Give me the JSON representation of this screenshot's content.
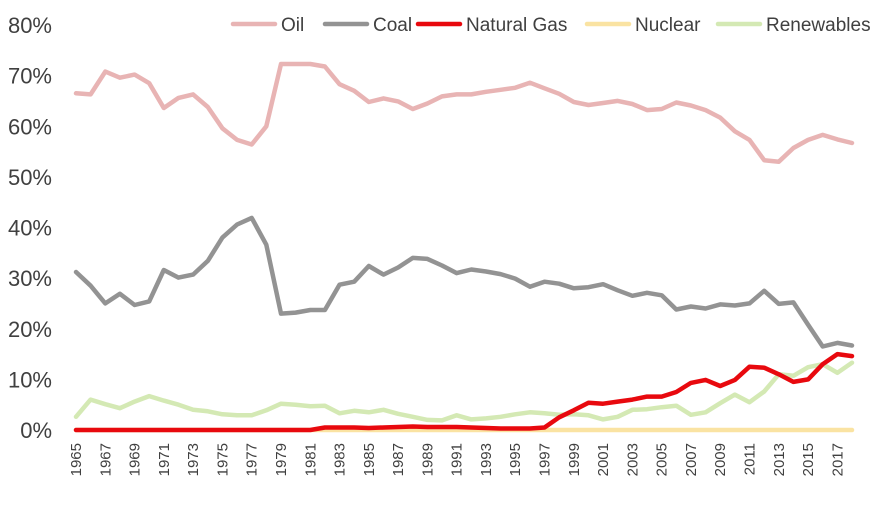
{
  "chart_data": {
    "type": "line",
    "title": "",
    "xlabel": "",
    "ylabel": "",
    "ylim": [
      0,
      80
    ],
    "y_ticks": [
      "0%",
      "10%",
      "20%",
      "30%",
      "40%",
      "50%",
      "60%",
      "70%",
      "80%"
    ],
    "x_tick_labels": [
      "1965",
      "1967",
      "1969",
      "1971",
      "1973",
      "1975",
      "1977",
      "1979",
      "1981",
      "1983",
      "1985",
      "1987",
      "1989",
      "1991",
      "1993",
      "1995",
      "1997",
      "1999",
      "2001",
      "2003",
      "2005",
      "2007",
      "2009",
      "2011",
      "2013",
      "2015",
      "2017"
    ],
    "x": [
      1965,
      1966,
      1967,
      1968,
      1969,
      1970,
      1971,
      1972,
      1973,
      1974,
      1975,
      1976,
      1977,
      1978,
      1979,
      1980,
      1981,
      1982,
      1983,
      1984,
      1985,
      1986,
      1987,
      1988,
      1989,
      1990,
      1991,
      1992,
      1993,
      1994,
      1995,
      1996,
      1997,
      1998,
      1999,
      2000,
      2001,
      2002,
      2003,
      2004,
      2005,
      2006,
      2007,
      2008,
      2009,
      2010,
      2011,
      2012,
      2013,
      2014,
      2015,
      2016,
      2017,
      2018
    ],
    "grid": false,
    "legend_position": "top",
    "series": [
      {
        "name": "Oil",
        "color": "#e8b4b4",
        "values": [
          66.5,
          66.3,
          70.8,
          69.6,
          70.2,
          68.5,
          63.6,
          65.6,
          66.3,
          63.8,
          59.6,
          57.3,
          56.4,
          60.0,
          72.3,
          72.3,
          72.3,
          71.8,
          68.3,
          67.0,
          64.8,
          65.5,
          64.9,
          63.4,
          64.5,
          65.9,
          66.3,
          66.3,
          66.8,
          67.2,
          67.6,
          68.6,
          67.5,
          66.4,
          64.8,
          64.2,
          64.6,
          65.0,
          64.4,
          63.2,
          63.4,
          64.7,
          64.1,
          63.2,
          61.7,
          59.0,
          57.3,
          53.3,
          53.0,
          55.7,
          57.3,
          58.3,
          57.4,
          56.7
        ]
      },
      {
        "name": "Coal",
        "color": "#939393",
        "values": [
          31.2,
          28.5,
          25.0,
          26.9,
          24.7,
          25.4,
          31.6,
          30.1,
          30.7,
          33.4,
          38.0,
          40.6,
          41.9,
          36.6,
          23.0,
          23.2,
          23.7,
          23.7,
          28.7,
          29.3,
          32.4,
          30.7,
          32.1,
          34.0,
          33.8,
          32.5,
          31.0,
          31.7,
          31.3,
          30.8,
          29.9,
          28.3,
          29.3,
          28.9,
          28.0,
          28.2,
          28.8,
          27.6,
          26.5,
          27.1,
          26.6,
          23.8,
          24.4,
          24.0,
          24.8,
          24.6,
          25.0,
          27.5,
          24.9,
          25.2,
          20.8,
          16.5,
          17.2,
          16.7
        ]
      },
      {
        "name": "Natural Gas",
        "color": "#e8090e",
        "values": [
          0,
          0,
          0,
          0,
          0,
          0,
          0,
          0,
          0,
          0,
          0,
          0,
          0,
          0,
          0,
          0,
          0,
          0.5,
          0.5,
          0.5,
          0.4,
          0.5,
          0.6,
          0.7,
          0.6,
          0.6,
          0.6,
          0.5,
          0.4,
          0.3,
          0.3,
          0.3,
          0.5,
          2.5,
          3.9,
          5.4,
          5.2,
          5.6,
          6.0,
          6.6,
          6.6,
          7.5,
          9.3,
          9.9,
          8.7,
          9.9,
          12.5,
          12.3,
          11.0,
          9.5,
          10.0,
          13.0,
          15.0,
          14.6
        ]
      },
      {
        "name": "Nuclear",
        "color": "#fae3a2",
        "values": [
          0,
          0,
          0,
          0,
          0,
          0,
          0,
          0,
          0,
          0,
          0,
          0,
          0,
          0,
          0,
          0,
          0,
          0,
          0,
          0,
          0,
          0,
          0,
          0,
          0,
          0,
          0,
          0,
          0,
          0,
          0,
          0,
          0,
          0,
          0,
          0,
          0,
          0,
          0,
          0,
          0,
          0,
          0,
          0,
          0,
          0,
          0,
          0,
          0,
          0,
          0,
          0,
          0,
          0
        ]
      },
      {
        "name": "Renewables",
        "color": "#d4e9b4",
        "values": [
          2.6,
          6.0,
          5.1,
          4.3,
          5.6,
          6.7,
          5.8,
          5.0,
          4.0,
          3.7,
          3.1,
          2.9,
          2.9,
          3.9,
          5.2,
          5.0,
          4.7,
          4.8,
          3.3,
          3.8,
          3.5,
          4.0,
          3.2,
          2.6,
          2.0,
          1.9,
          2.9,
          2.1,
          2.3,
          2.6,
          3.1,
          3.5,
          3.3,
          3.0,
          3.1,
          2.9,
          2.1,
          2.6,
          4.0,
          4.1,
          4.5,
          4.8,
          3.0,
          3.5,
          5.3,
          7.0,
          5.5,
          7.6,
          11.0,
          10.7,
          12.4,
          13.0,
          11.3,
          13.3
        ]
      }
    ]
  }
}
